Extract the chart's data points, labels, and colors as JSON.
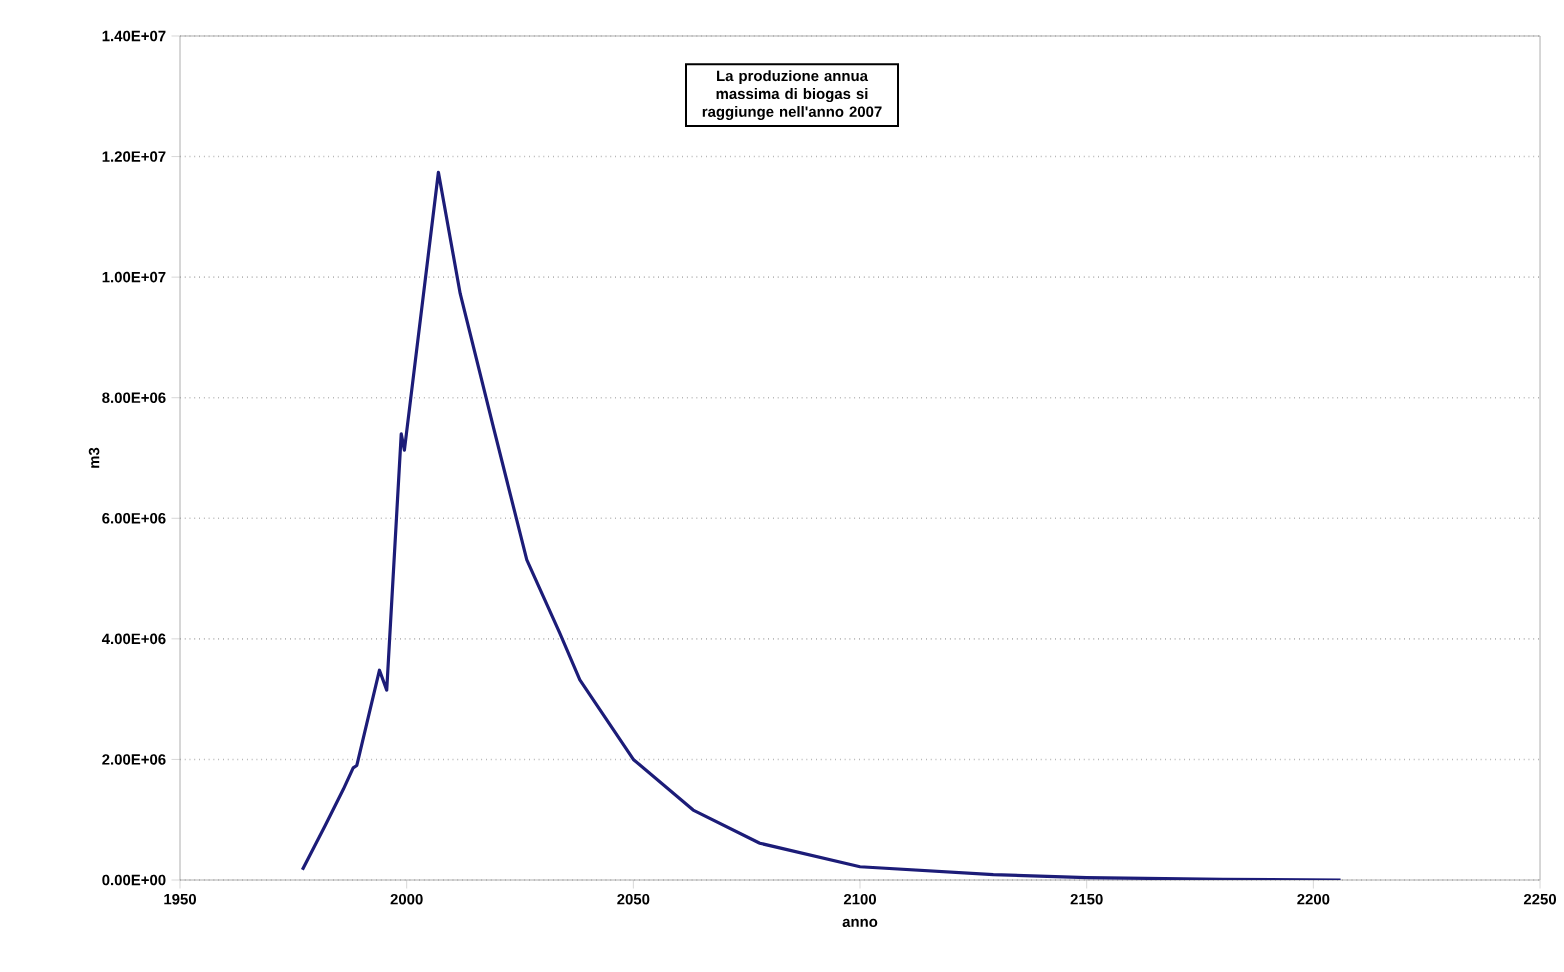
{
  "chart_data": {
    "type": "line",
    "xlabel": "anno",
    "ylabel": "m3",
    "annotations": [
      "La produzione annua massima di biogas si raggiunge nell'anno 2007"
    ],
    "x": [
      1977,
      1982,
      1986,
      1988.2,
      1989,
      1994,
      1995.6,
      1998.8,
      1999.5,
      2007,
      2011.8,
      2019.1,
      2026.5,
      2033.8,
      2038.2,
      2050,
      2063.2,
      2077.9,
      2100,
      2129.4,
      2150,
      2180,
      2206
    ],
    "series": [
      {
        "color": "#1c1c78",
        "values": [
          170000,
          900000,
          1500000,
          1860000,
          1900000,
          3480000,
          3150000,
          7400000,
          7130000,
          11740000,
          9730000,
          7520000,
          5310000,
          4090000,
          3320000,
          2000000,
          1160000,
          610000,
          220000,
          90000,
          40000,
          10000,
          0
        ]
      }
    ],
    "xlim": [
      1950,
      2250
    ],
    "xticks": [
      1950,
      2000,
      2050,
      2100,
      2150,
      2200,
      2250
    ],
    "ylim": [
      0,
      14000000
    ],
    "yticks": [
      {
        "value": 0,
        "label": "0.00E+00"
      },
      {
        "value": 2000000,
        "label": "2.00E+06"
      },
      {
        "value": 4000000,
        "label": "4.00E+06"
      },
      {
        "value": 6000000,
        "label": "6.00E+06"
      },
      {
        "value": 8000000,
        "label": "8.00E+06"
      },
      {
        "value": 10000000,
        "label": "1.00E+07"
      },
      {
        "value": 12000000,
        "label": "1.20E+07"
      },
      {
        "value": 14000000,
        "label": "1.40E+07"
      }
    ],
    "grid": "y",
    "marker": "none",
    "line_style": "solid"
  }
}
